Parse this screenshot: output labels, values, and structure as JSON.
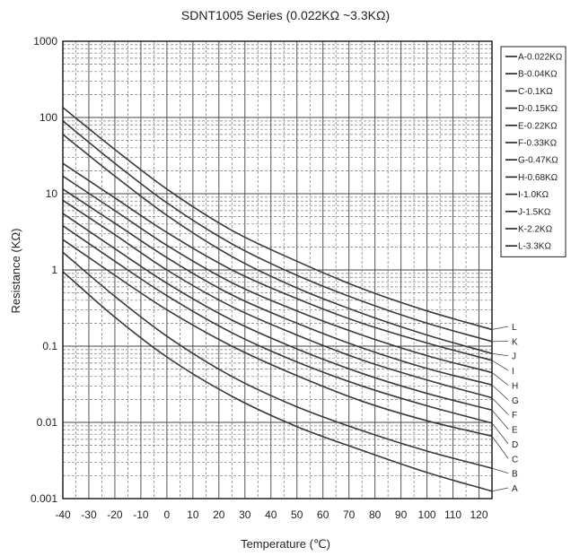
{
  "chart_data": {
    "type": "line",
    "title": "SDNT1005 Series (0.022KΩ ~3.3KΩ)",
    "xlabel": "Temperature (℃)",
    "ylabel": "Resistance (KΩ)",
    "x_scale": "linear",
    "y_scale": "log",
    "xlim": [
      -40,
      125
    ],
    "ylim": [
      0.001,
      1000
    ],
    "x_ticks": [
      -40,
      -30,
      -20,
      -10,
      0,
      10,
      20,
      30,
      40,
      50,
      60,
      70,
      80,
      90,
      100,
      110,
      120
    ],
    "x_tick_labels": [
      "-40",
      "-30",
      "-20",
      "-10",
      "0",
      "10",
      "20",
      "30",
      "40",
      "50",
      "60",
      "70",
      "80",
      "90",
      "100",
      "110",
      "120"
    ],
    "y_ticks": [
      0.001,
      0.01,
      0.1,
      1,
      10,
      100,
      1000
    ],
    "y_tick_labels": [
      "0.001",
      "0.01",
      "0.1",
      "1",
      "10",
      "100",
      "1000"
    ],
    "grid": true,
    "legend_position": "right",
    "x": [
      -40,
      -20,
      0,
      25,
      50,
      75,
      100,
      125
    ],
    "series": [
      {
        "name": "A-0.022KΩ",
        "end_label": "A",
        "values": [
          0.95,
          0.24,
          0.072,
          0.022,
          0.0088,
          0.0043,
          0.0022,
          0.00125
        ]
      },
      {
        "name": "B-0.04KΩ",
        "end_label": "B",
        "values": [
          1.7,
          0.45,
          0.135,
          0.04,
          0.016,
          0.0078,
          0.0042,
          0.0025
        ]
      },
      {
        "name": "C-0.1KΩ",
        "end_label": "C",
        "values": [
          2.5,
          0.85,
          0.3,
          0.1,
          0.041,
          0.019,
          0.0105,
          0.0066
        ]
      },
      {
        "name": "D-0.15KΩ",
        "end_label": "D",
        "values": [
          3.8,
          1.3,
          0.46,
          0.15,
          0.062,
          0.03,
          0.0165,
          0.0098
        ]
      },
      {
        "name": "E-0.22KΩ",
        "end_label": "E",
        "values": [
          5.5,
          1.9,
          0.67,
          0.22,
          0.092,
          0.044,
          0.024,
          0.0145
        ]
      },
      {
        "name": "F-0.33KΩ",
        "end_label": "F",
        "values": [
          8.2,
          2.9,
          1.0,
          0.33,
          0.14,
          0.066,
          0.036,
          0.021
        ]
      },
      {
        "name": "G-0.47KΩ",
        "end_label": "G",
        "values": [
          11.5,
          4.1,
          1.45,
          0.47,
          0.2,
          0.095,
          0.051,
          0.031
        ]
      },
      {
        "name": "H-0.68KΩ",
        "end_label": "H",
        "values": [
          17,
          6.0,
          2.1,
          0.68,
          0.29,
          0.14,
          0.075,
          0.045
        ]
      },
      {
        "name": "I-1.0KΩ",
        "end_label": "I",
        "values": [
          25,
          8.8,
          3.1,
          1.0,
          0.42,
          0.2,
          0.11,
          0.065
        ]
      },
      {
        "name": "J-1.5KΩ",
        "end_label": "J",
        "values": [
          60,
          17,
          5.2,
          1.5,
          0.58,
          0.27,
          0.14,
          0.08
        ]
      },
      {
        "name": "K-2.2KΩ",
        "end_label": "K",
        "values": [
          90,
          25,
          7.6,
          2.2,
          0.85,
          0.39,
          0.2,
          0.115
        ]
      },
      {
        "name": "L-3.3KΩ",
        "end_label": "L",
        "values": [
          135,
          38,
          11.5,
          3.3,
          1.3,
          0.57,
          0.29,
          0.165
        ]
      }
    ]
  }
}
